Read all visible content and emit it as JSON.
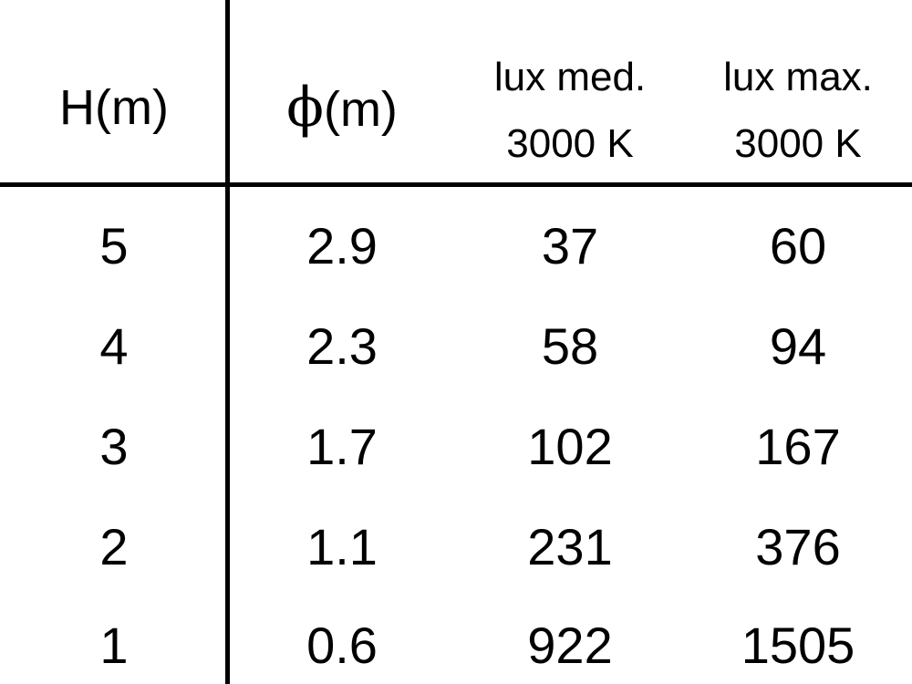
{
  "table": {
    "headers": [
      {
        "line1": "H(m)"
      },
      {
        "symbol": "ϕ",
        "line1": "(m)"
      },
      {
        "line1": "lux med.",
        "line2": "3000 K"
      },
      {
        "line1": "lux max.",
        "line2": "3000 K"
      }
    ],
    "rows": [
      [
        "5",
        "2.9",
        "37",
        "60"
      ],
      [
        "4",
        "2.3",
        "58",
        "94"
      ],
      [
        "3",
        "1.7",
        "102",
        "167"
      ],
      [
        "2",
        "1.1",
        "231",
        "376"
      ],
      [
        "1",
        "0.6",
        "922",
        "1505"
      ]
    ]
  }
}
